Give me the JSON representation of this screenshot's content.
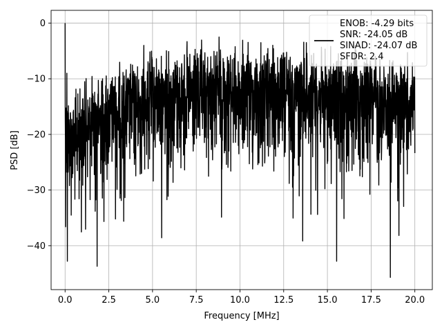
{
  "chart_data": {
    "type": "line",
    "title": "",
    "xlabel": "Frequency [MHz]",
    "ylabel": "PSD [dB]",
    "xlim": [
      -0.8,
      21.0
    ],
    "ylim": [
      -47.9,
      2.3
    ],
    "x_ticks": [
      0.0,
      2.5,
      5.0,
      7.5,
      10.0,
      12.5,
      15.0,
      17.5,
      20.0
    ],
    "x_tick_labels": [
      "0.0",
      "2.5",
      "5.0",
      "7.5",
      "10.0",
      "12.5",
      "15.0",
      "17.5",
      "20.0"
    ],
    "y_ticks": [
      0,
      -10,
      -20,
      -30,
      -40
    ],
    "y_tick_labels": [
      "0",
      "−10",
      "−20",
      "−30",
      "−40"
    ],
    "grid": true,
    "legend_position": "top-right",
    "series": [
      {
        "name": "",
        "color": "#000000",
        "x_range": [
          0.0,
          20.0
        ],
        "points": 2000,
        "envelope": {
          "x": [
            0,
            0.5,
            1,
            2,
            3,
            4,
            4.5,
            6,
            8,
            10,
            12,
            14,
            16,
            18,
            20
          ],
          "mean": [
            -20,
            -22,
            -20,
            -18,
            -17,
            -16,
            -15,
            -14,
            -13.5,
            -13.5,
            -14,
            -14,
            -14.5,
            -15,
            -16
          ]
        },
        "peaks": [
          {
            "x": 0.0,
            "y": 0.0
          },
          {
            "x": 0.1,
            "y": -9.0
          },
          {
            "x": 0.13,
            "y": -42.8
          },
          {
            "x": 1.83,
            "y": -43.7
          },
          {
            "x": 15.53,
            "y": -42.8
          },
          {
            "x": 18.6,
            "y": -45.7
          },
          {
            "x": 4.5,
            "y": -4.0
          },
          {
            "x": 8.8,
            "y": -2.5
          },
          {
            "x": 11.2,
            "y": -3.5
          },
          {
            "x": 13.8,
            "y": -3.5
          }
        ]
      }
    ],
    "legend_text": [
      "ENOB: -4.29 bits",
      "SNR: -24.05 dB",
      "SINAD: -24.07 dB",
      "SFDR: 2.4"
    ]
  },
  "colors": {
    "line": "#000000",
    "grid": "#b0b0b0",
    "axes": "#000000"
  }
}
